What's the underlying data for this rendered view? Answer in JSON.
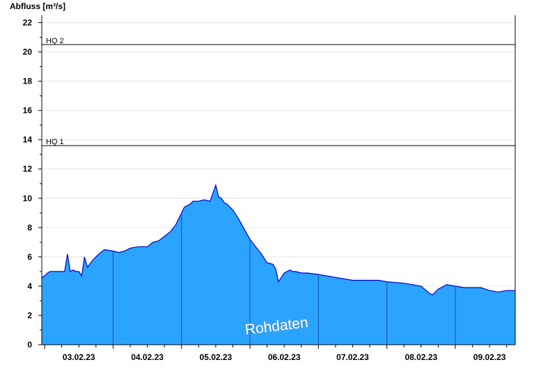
{
  "chart_data": {
    "type": "area",
    "ylabel": "Abfluss [m³/s]",
    "ylim": [
      0,
      22.5
    ],
    "yticks": [
      0,
      2,
      4,
      6,
      8,
      10,
      12,
      14,
      16,
      18,
      20,
      22
    ],
    "xlim": [
      "2023-02-02T11:00",
      "2023-02-09T09:00"
    ],
    "xticks": [
      {
        "label": "03.02.23",
        "at": "2023-02-03T00:00"
      },
      {
        "label": "04.02.23",
        "at": "2023-02-04T00:00"
      },
      {
        "label": "05.02.23",
        "at": "2023-02-05T00:00"
      },
      {
        "label": "06.02.23",
        "at": "2023-02-06T00:00"
      },
      {
        "label": "07.02.23",
        "at": "2023-02-07T00:00"
      },
      {
        "label": "08.02.23",
        "at": "2023-02-08T00:00"
      },
      {
        "label": "09.02.23",
        "at": "2023-02-09T00:00"
      }
    ],
    "day_boundaries": [
      "2023-02-03T12:00",
      "2023-02-04T12:00",
      "2023-02-05T12:00",
      "2023-02-06T12:00",
      "2023-02-07T12:00",
      "2023-02-08T12:00"
    ],
    "reference_lines": [
      {
        "label": "HQ 2",
        "value": 20.5
      },
      {
        "label": "HQ 1",
        "value": 13.6
      }
    ],
    "series": [
      {
        "x": [
          "2023-02-02T11:00",
          "2023-02-02T12:00",
          "2023-02-02T13:00",
          "2023-02-02T14:00",
          "2023-02-02T17:00",
          "2023-02-02T19:00",
          "2023-02-02T20:00",
          "2023-02-02T21:00",
          "2023-02-02T22:00",
          "2023-02-02T23:00",
          "2023-02-03T00:00",
          "2023-02-03T01:00",
          "2023-02-03T02:00",
          "2023-02-03T03:00",
          "2023-02-03T05:00",
          "2023-02-03T07:00",
          "2023-02-03T09:00",
          "2023-02-03T12:00",
          "2023-02-03T14:00",
          "2023-02-03T16:00",
          "2023-02-03T18:00",
          "2023-02-03T21:00",
          "2023-02-04T00:00",
          "2023-02-04T02:00",
          "2023-02-04T04:00",
          "2023-02-04T06:00",
          "2023-02-04T08:00",
          "2023-02-04T10:00",
          "2023-02-04T12:00",
          "2023-02-04T13:00",
          "2023-02-04T15:00",
          "2023-02-04T16:00",
          "2023-02-04T18:00",
          "2023-02-04T20:00",
          "2023-02-04T22:00",
          "2023-02-05T00:00",
          "2023-02-05T01:00",
          "2023-02-05T02:00",
          "2023-02-05T03:00",
          "2023-02-05T04:00",
          "2023-02-05T06:00",
          "2023-02-05T08:00",
          "2023-02-05T10:00",
          "2023-02-05T12:00",
          "2023-02-05T14:00",
          "2023-02-05T16:00",
          "2023-02-05T18:00",
          "2023-02-05T20:00",
          "2023-02-05T21:00",
          "2023-02-05T22:00",
          "2023-02-06T00:00",
          "2023-02-06T02:00",
          "2023-02-06T03:00",
          "2023-02-06T04:00",
          "2023-02-06T06:00",
          "2023-02-06T08:00",
          "2023-02-06T12:00",
          "2023-02-06T18:00",
          "2023-02-07T00:00",
          "2023-02-07T06:00",
          "2023-02-07T09:00",
          "2023-02-07T12:00",
          "2023-02-07T18:00",
          "2023-02-08T00:00",
          "2023-02-08T03:00",
          "2023-02-08T04:00",
          "2023-02-08T06:00",
          "2023-02-08T09:00",
          "2023-02-08T12:00",
          "2023-02-08T15:00",
          "2023-02-08T18:00",
          "2023-02-08T21:00",
          "2023-02-09T00:00",
          "2023-02-09T03:00",
          "2023-02-09T06:00",
          "2023-02-09T09:00"
        ],
        "y": [
          4.6,
          4.7,
          4.9,
          5.0,
          5.0,
          5.0,
          6.2,
          5.0,
          5.1,
          5.0,
          5.0,
          4.7,
          6.0,
          5.3,
          5.8,
          6.2,
          6.5,
          6.4,
          6.3,
          6.4,
          6.6,
          6.7,
          6.7,
          7.0,
          7.1,
          7.4,
          7.7,
          8.2,
          9.0,
          9.4,
          9.6,
          9.8,
          9.8,
          9.9,
          9.8,
          10.9,
          10.1,
          10.0,
          9.7,
          9.6,
          9.2,
          8.6,
          7.9,
          7.2,
          6.7,
          6.2,
          5.6,
          5.5,
          5.2,
          4.3,
          4.9,
          5.1,
          5.0,
          5.0,
          4.9,
          4.9,
          4.8,
          4.6,
          4.4,
          4.4,
          4.4,
          4.3,
          4.2,
          4.0,
          3.5,
          3.4,
          3.8,
          4.1,
          4.0,
          3.9,
          3.9,
          3.9,
          3.7,
          3.6,
          3.7,
          3.7
        ]
      }
    ],
    "watermark": "Rohdaten",
    "colors": {
      "area_fill": "#2aa4ff",
      "series_line": "#0000cc",
      "day_separator": "#1a4fa0",
      "grid": "#e6e6e6",
      "axis": "#000000"
    },
    "grid": true,
    "legend": "none"
  }
}
